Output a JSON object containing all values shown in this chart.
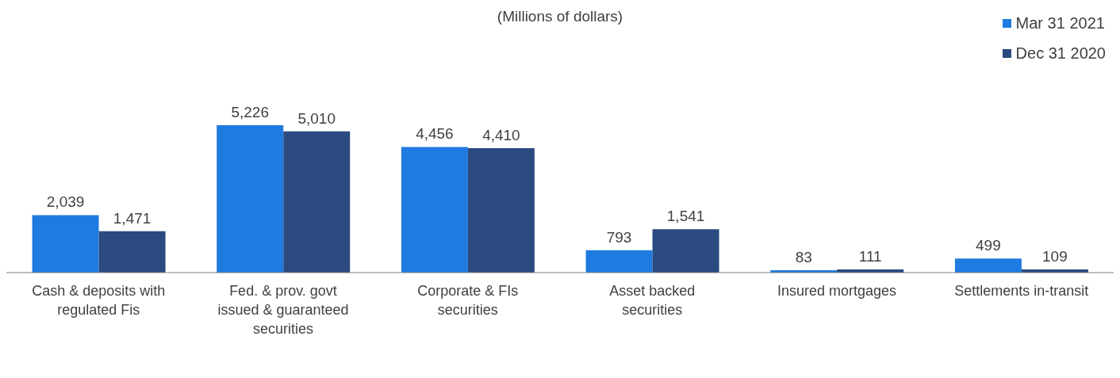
{
  "chart_data": {
    "type": "bar",
    "subtitle": "(Millions of dollars)",
    "categories": [
      "Cash & deposits with regulated Fis",
      "Fed. & prov. govt issued & guaranteed securities",
      "Corporate & FIs securities",
      "Asset backed securities",
      "Insured mortgages",
      "Settlements in-transit"
    ],
    "series": [
      {
        "name": "Mar 31 2021",
        "color": "#1f7be0",
        "values": [
          2039,
          5226,
          4456,
          793,
          83,
          499
        ],
        "value_labels": [
          "2,039",
          "5,226",
          "4,456",
          "793",
          "83",
          "499"
        ]
      },
      {
        "name": "Dec 31 2020",
        "color": "#2a4a80",
        "values": [
          1471,
          5010,
          4410,
          1541,
          111,
          109
        ],
        "value_labels": [
          "1,471",
          "5,010",
          "4,410",
          "1,541",
          "111",
          "109"
        ]
      }
    ],
    "legend": "top right",
    "grid": false
  }
}
